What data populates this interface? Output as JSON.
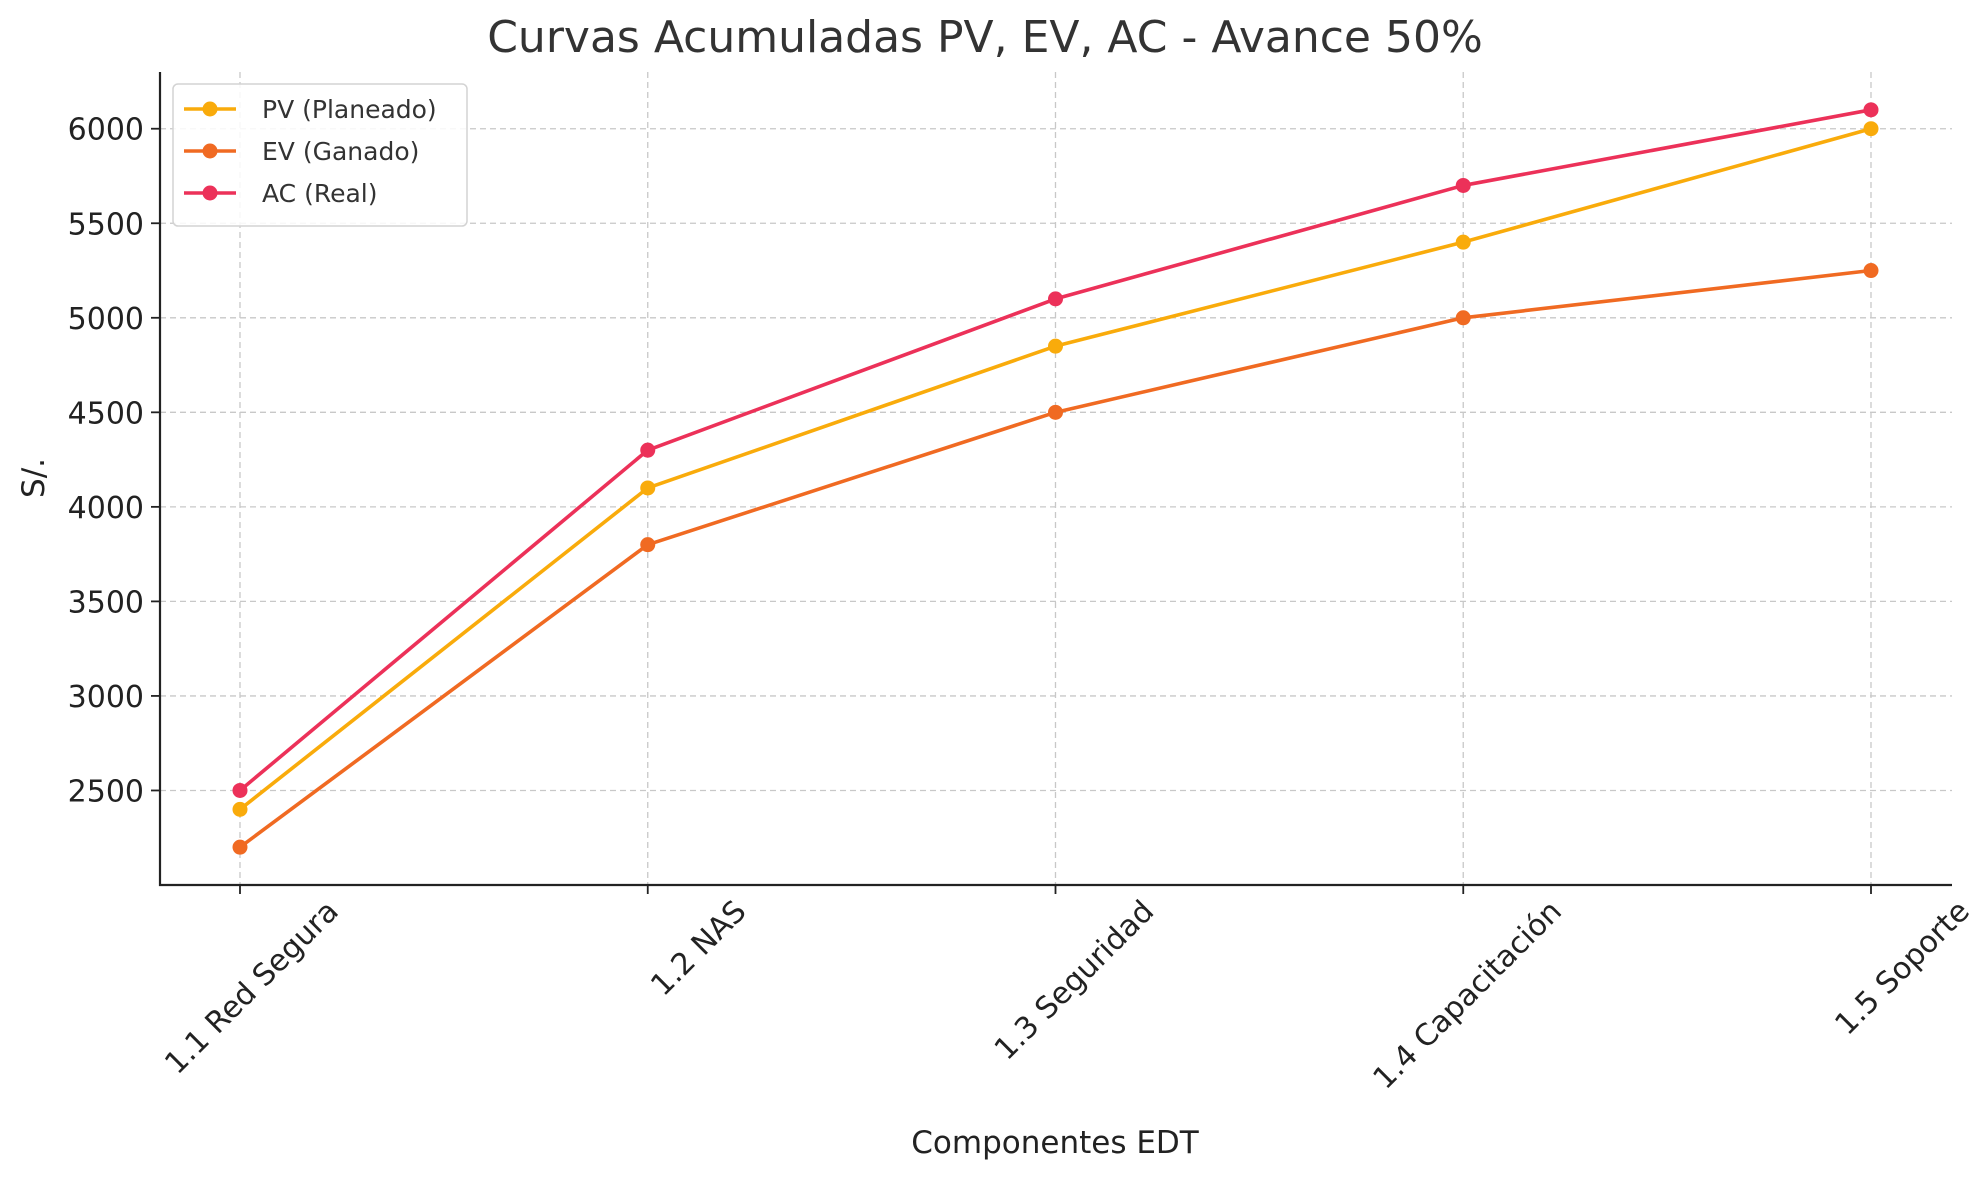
{
  "chart_data": {
    "type": "line",
    "title": "Curvas Acumuladas PV, EV, AC - Avance 50%",
    "xlabel": "Componentes EDT",
    "ylabel": "S/.",
    "categories": [
      "1.1 Red Segura",
      "1.2 NAS",
      "1.3 Seguridad",
      "1.4 Capacitación",
      "1.5 Soporte"
    ],
    "ylim": [
      2000,
      6300
    ],
    "yticks": [
      2500,
      3000,
      3500,
      4000,
      4500,
      5000,
      5500,
      6000
    ],
    "grid": true,
    "legend_position": "top-left",
    "series": [
      {
        "name": "PV (Planeado)",
        "color": "#f9ab0b",
        "values": [
          2400,
          4100,
          4850,
          5400,
          6000
        ]
      },
      {
        "name": "EV (Ganado)",
        "color": "#f06a22",
        "values": [
          2200,
          3800,
          4500,
          5000,
          5250
        ]
      },
      {
        "name": "AC (Real)",
        "color": "#ec3159",
        "values": [
          2500,
          4300,
          5100,
          5700,
          6100
        ]
      }
    ]
  }
}
